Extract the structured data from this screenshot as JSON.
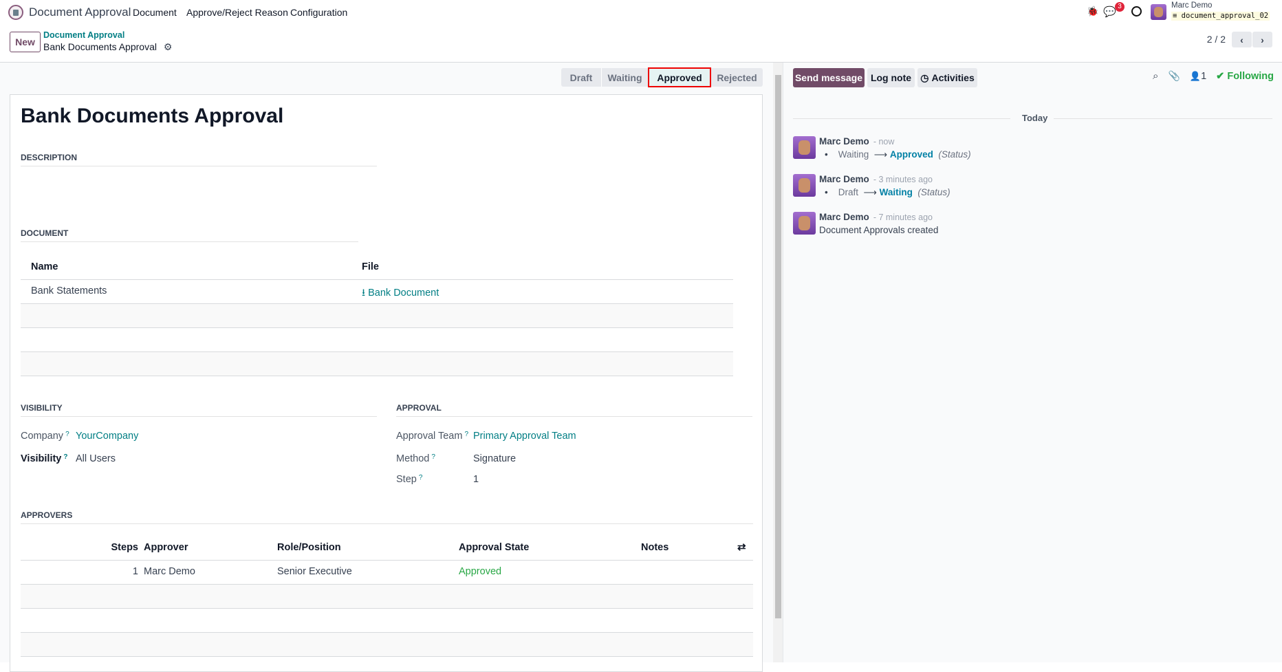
{
  "navbar": {
    "app_title": "Document Approval",
    "menus": [
      "Document",
      "Approve/Reject Reason",
      "Configuration"
    ],
    "message_count": "3",
    "user_name": "Marc Demo",
    "database": "document_approval_02"
  },
  "control_panel": {
    "new_label": "New",
    "breadcrumb_parent": "Document Approval",
    "breadcrumb_current": "Bank Documents Approval",
    "pager": "2 / 2"
  },
  "statusbar": {
    "stages": [
      "Draft",
      "Waiting",
      "Approved",
      "Rejected"
    ],
    "active": "Approved"
  },
  "form": {
    "title": "Bank Documents Approval",
    "description_label": "DESCRIPTION",
    "document_label": "DOCUMENT",
    "document_table": {
      "headers": [
        "Name",
        "File"
      ],
      "rows": [
        {
          "name": "Bank Statements",
          "file": "Bank Document"
        }
      ]
    },
    "visibility_label": "VISIBILITY",
    "company_label": "Company",
    "company_value": "YourCompany",
    "visibility_field_label": "Visibility",
    "visibility_value": "All Users",
    "approval_label": "APPROVAL",
    "team_label": "Approval Team",
    "team_value": "Primary Approval Team",
    "method_label": "Method",
    "method_value": "Signature",
    "step_label": "Step",
    "step_value": "1",
    "help_mark": "?",
    "approvers_label": "APPROVERS",
    "approvers_table": {
      "headers": [
        "Steps",
        "Approver",
        "Role/Position",
        "Approval State",
        "Notes"
      ],
      "rows": [
        {
          "steps": "1",
          "approver": "Marc Demo",
          "role": "Senior Executive",
          "state": "Approved",
          "notes": ""
        }
      ]
    }
  },
  "chatter": {
    "send_message": "Send message",
    "log_note": "Log note",
    "activities": "Activities",
    "followers_count": "1",
    "following": "Following",
    "date_separator": "Today",
    "messages": [
      {
        "author": "Marc Demo",
        "time": "- now",
        "from": "Waiting",
        "to": "Approved",
        "field": "(Status)"
      },
      {
        "author": "Marc Demo",
        "time": "- 3 minutes ago",
        "from": "Draft",
        "to": "Waiting",
        "field": "(Status)"
      },
      {
        "author": "Marc Demo",
        "time": "- 7 minutes ago",
        "body": "Document Approvals created"
      }
    ]
  },
  "colors": {
    "brand": "#714b67",
    "link": "#017e84",
    "success": "#28a745",
    "tracking": "#0180a5"
  }
}
